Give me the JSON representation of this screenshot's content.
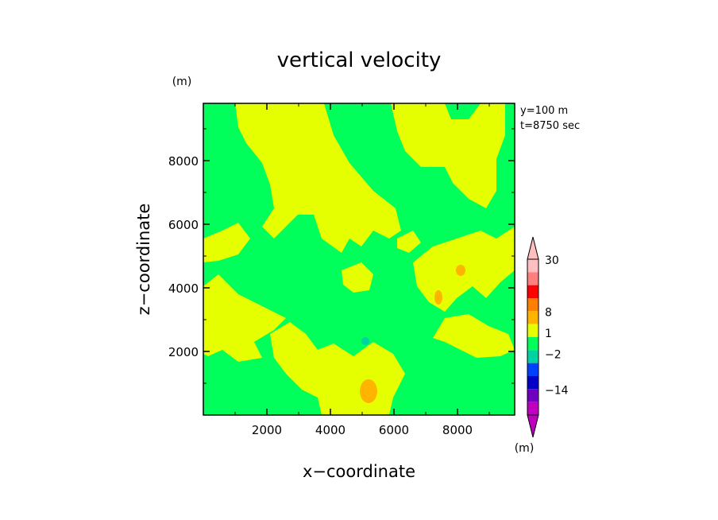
{
  "chart_data": {
    "type": "heatmap",
    "title": "vertical velocity",
    "xlabel": "x−coordinate",
    "ylabel": "z−coordinate",
    "x_unit": "(m)",
    "y_unit": "(m)",
    "xlim": [
      0,
      9800
    ],
    "ylim": [
      0,
      9800
    ],
    "x_ticks": [
      "2000",
      "4000",
      "6000",
      "8000"
    ],
    "y_ticks": [
      "2000",
      "4000",
      "6000",
      "8000"
    ],
    "annotations": [
      "y=100 m",
      "t=8750 sec"
    ],
    "colorbar": {
      "unit": "(m)",
      "tick_labels": [
        "30",
        "8",
        "1",
        "−2",
        "−14"
      ],
      "colors": [
        "#ffbfbf",
        "#ff7f7f",
        "#ff0000",
        "#ff8000",
        "#ffb400",
        "#e6ff00",
        "#00ff5a",
        "#00d2a0",
        "#0040ff",
        "#0000c8",
        "#7000c0",
        "#c000c0"
      ]
    },
    "field": {
      "dominant_values": [
        "weak updraft (yellow)",
        "near zero (green)"
      ],
      "local_maxima_x": [
        5300,
        7500,
        8400
      ],
      "local_maxima_z": [
        700,
        3900,
        4600
      ],
      "local_minimum_x": [
        4500
      ],
      "local_minimum_z": [
        2400
      ]
    }
  }
}
